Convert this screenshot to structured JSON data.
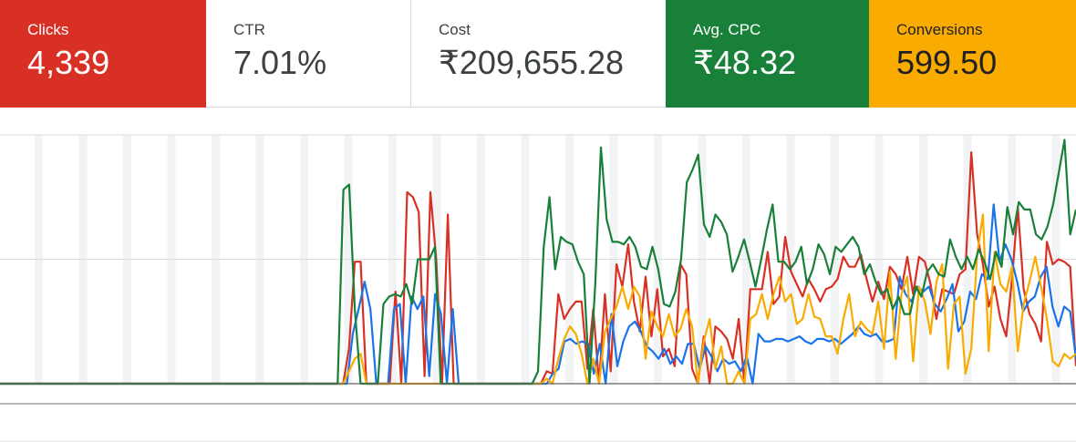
{
  "scorecards": [
    {
      "label": "Clicks",
      "value": "4,339",
      "color": "#d93025"
    },
    {
      "label": "CTR",
      "value": "7.01%",
      "color": "#ffffff"
    },
    {
      "label": "Cost",
      "value": "₹209,655.28",
      "color": "#ffffff"
    },
    {
      "label": "Avg. CPC",
      "value": "₹48.32",
      "color": "#188038"
    },
    {
      "label": "Conversions",
      "value": "599.50",
      "color": "#f9ab00"
    }
  ],
  "chart_data": {
    "type": "line",
    "grid": true,
    "ylim": [
      0,
      1
    ],
    "series": [
      {
        "color": "#d93025",
        "values": [
          0,
          0,
          0,
          0,
          0,
          0,
          0,
          0,
          0,
          0,
          0,
          0,
          0,
          0,
          0,
          0,
          0,
          0,
          0,
          0,
          0,
          0,
          0,
          0,
          0,
          0,
          0,
          0,
          0,
          0,
          0,
          0,
          0,
          0,
          0,
          0,
          0,
          0,
          0,
          0,
          0,
          0,
          0,
          0,
          0,
          0,
          0,
          0,
          0,
          0,
          0,
          0,
          0,
          0,
          0,
          0,
          0,
          0,
          0,
          0,
          0.14,
          0.49,
          0.49,
          0,
          0,
          0,
          0,
          0,
          0.37,
          0,
          0.77,
          0.75,
          0.69,
          0.03,
          0.77,
          0.5,
          0,
          0.68,
          0,
          0,
          0,
          0,
          0,
          0,
          0,
          0,
          0,
          0,
          0,
          0,
          0,
          0,
          0,
          0,
          0.05,
          0.04,
          0.36,
          0.26,
          0.3,
          0.33,
          0.33,
          0.06,
          0.3,
          0,
          0.36,
          0.05,
          0.48,
          0.39,
          0.56,
          0.33,
          0.21,
          0.43,
          0.19,
          0.38,
          0.11,
          0.14,
          0.07,
          0.48,
          0.44,
          0.06,
          0,
          0.19,
          0,
          0.23,
          0.21,
          0.18,
          0.1,
          0.26,
          0,
          0.38,
          0.38,
          0.38,
          0.53,
          0.32,
          0.35,
          0.59,
          0.45,
          0.4,
          0.35,
          0.42,
          0.38,
          0.33,
          0.38,
          0.39,
          0.42,
          0.51,
          0.47,
          0.47,
          0.52,
          0.42,
          0.33,
          0.41,
          0.34,
          0.47,
          0.44,
          0.38,
          0.51,
          0.36,
          0.51,
          0.49,
          0.4,
          0.26,
          0.38,
          0.37,
          0.36,
          0.44,
          0.46,
          0.93,
          0.6,
          0.48,
          0.31,
          0.39,
          0.26,
          0.19,
          0.42,
          0.71,
          0.38,
          0.28,
          0.24,
          0.17,
          0.57,
          0.48,
          0.5,
          0.49,
          0.47,
          0.07
        ]
      },
      {
        "color": "#1a73e8",
        "values": [
          0,
          0,
          0,
          0,
          0,
          0,
          0,
          0,
          0,
          0,
          0,
          0,
          0,
          0,
          0,
          0,
          0,
          0,
          0,
          0,
          0,
          0,
          0,
          0,
          0,
          0,
          0,
          0,
          0,
          0,
          0,
          0,
          0,
          0,
          0,
          0,
          0,
          0,
          0,
          0,
          0,
          0,
          0,
          0,
          0,
          0,
          0,
          0,
          0,
          0,
          0,
          0,
          0,
          0,
          0,
          0,
          0,
          0,
          0,
          0,
          0.2,
          0.3,
          0.41,
          0.3,
          0,
          0,
          0,
          0.3,
          0.32,
          0,
          0.35,
          0.3,
          0.35,
          0.03,
          0.36,
          0.28,
          0,
          0.3,
          0,
          0,
          0,
          0,
          0,
          0,
          0,
          0,
          0,
          0,
          0,
          0,
          0,
          0,
          0,
          0,
          0.04,
          0.06,
          0.17,
          0.18,
          0.16,
          0.17,
          0.16,
          0.04,
          0.16,
          0,
          0.28,
          0.07,
          0.17,
          0.23,
          0.25,
          0.21,
          0.15,
          0.13,
          0.1,
          0.14,
          0.08,
          0.11,
          0.08,
          0.16,
          0.16,
          0.06,
          0.15,
          0.11,
          0.05,
          0.1,
          0.08,
          0.09,
          0.05,
          0.11,
          0,
          0.2,
          0.17,
          0.17,
          0.18,
          0.18,
          0.17,
          0.18,
          0.19,
          0.17,
          0.16,
          0.18,
          0.18,
          0.17,
          0.18,
          0.16,
          0.18,
          0.2,
          0.23,
          0.2,
          0.19,
          0.2,
          0.17,
          0.17,
          0.18,
          0.43,
          0.36,
          0.33,
          0.39,
          0.37,
          0.39,
          0.32,
          0.29,
          0.34,
          0.4,
          0.21,
          0.25,
          0.37,
          0.34,
          0.44,
          0.42,
          0.72,
          0.49,
          0.56,
          0.5,
          0.41,
          0.29,
          0.33,
          0.35,
          0.43,
          0.47,
          0.31,
          0.23,
          0.31,
          0.29,
          0.1
        ]
      },
      {
        "color": "#f9ab00",
        "values": [
          0,
          0,
          0,
          0,
          0,
          0,
          0,
          0,
          0,
          0,
          0,
          0,
          0,
          0,
          0,
          0,
          0,
          0,
          0,
          0,
          0,
          0,
          0,
          0,
          0,
          0,
          0,
          0,
          0,
          0,
          0,
          0,
          0,
          0,
          0,
          0,
          0,
          0,
          0,
          0,
          0,
          0,
          0,
          0,
          0,
          0,
          0,
          0,
          0,
          0,
          0,
          0,
          0,
          0,
          0,
          0,
          0,
          0,
          0,
          0,
          0.05,
          0.1,
          0.12,
          0,
          0,
          0,
          0,
          0,
          0,
          0,
          0,
          0,
          0,
          0,
          0,
          0,
          0,
          0,
          0,
          0,
          0,
          0,
          0,
          0,
          0,
          0,
          0,
          0,
          0,
          0,
          0,
          0,
          0,
          0,
          0.02,
          0,
          0.1,
          0.18,
          0.23,
          0.2,
          0.12,
          0,
          0.1,
          0,
          0.21,
          0.26,
          0.31,
          0.39,
          0.3,
          0.39,
          0.35,
          0.1,
          0.29,
          0.23,
          0.19,
          0.28,
          0.19,
          0.22,
          0.3,
          0.23,
          0,
          0.17,
          0.26,
          0.06,
          0.15,
          0,
          0,
          0.05,
          0,
          0.26,
          0.28,
          0.36,
          0.26,
          0.36,
          0.43,
          0.33,
          0.36,
          0.24,
          0.26,
          0.36,
          0.27,
          0.26,
          0.19,
          0.19,
          0.12,
          0.26,
          0.36,
          0.19,
          0.25,
          0.22,
          0.2,
          0.33,
          0.14,
          0.45,
          0.1,
          0.36,
          0.43,
          0.09,
          0.39,
          0.33,
          0.2,
          0.41,
          0.48,
          0.06,
          0.32,
          0.35,
          0.04,
          0.14,
          0.52,
          0.68,
          0.13,
          0.53,
          0.4,
          0.37,
          0.47,
          0.13,
          0.32,
          0.41,
          0.51,
          0.39,
          0.26,
          0.09,
          0.07,
          0.12,
          0.1,
          0.12
        ]
      },
      {
        "color": "#188038",
        "values": [
          0,
          0,
          0,
          0,
          0,
          0,
          0,
          0,
          0,
          0,
          0,
          0,
          0,
          0,
          0,
          0,
          0,
          0,
          0,
          0,
          0,
          0,
          0,
          0,
          0,
          0,
          0,
          0,
          0,
          0,
          0,
          0,
          0,
          0,
          0,
          0,
          0,
          0,
          0,
          0,
          0,
          0,
          0,
          0,
          0,
          0,
          0,
          0,
          0,
          0,
          0,
          0,
          0,
          0,
          0,
          0,
          0,
          0,
          0,
          0,
          0.78,
          0.8,
          0.3,
          0,
          0,
          0,
          0,
          0.32,
          0.35,
          0.36,
          0.35,
          0.4,
          0.32,
          0.5,
          0.5,
          0.5,
          0.55,
          0,
          0,
          0,
          0,
          0,
          0,
          0,
          0,
          0,
          0,
          0,
          0,
          0,
          0,
          0,
          0,
          0,
          0.05,
          0.55,
          0.75,
          0.46,
          0.59,
          0.57,
          0.56,
          0.49,
          0.44,
          0,
          0.4,
          0.95,
          0.66,
          0.57,
          0.57,
          0.56,
          0.59,
          0.55,
          0.47,
          0.46,
          0.55,
          0.46,
          0.32,
          0.31,
          0.37,
          0.5,
          0.81,
          0.86,
          0.92,
          0.64,
          0.59,
          0.68,
          0.65,
          0.6,
          0.45,
          0.51,
          0.58,
          0.49,
          0.39,
          0.5,
          0.62,
          0.72,
          0.49,
          0.49,
          0.46,
          0.49,
          0.55,
          0.4,
          0.46,
          0.56,
          0.52,
          0.44,
          0.55,
          0.53,
          0.56,
          0.59,
          0.55,
          0.44,
          0.48,
          0.41,
          0.36,
          0.38,
          0.3,
          0.35,
          0.28,
          0.28,
          0.39,
          0.35,
          0.45,
          0.48,
          0.44,
          0.43,
          0.58,
          0.51,
          0.46,
          0.51,
          0.46,
          0.54,
          0.49,
          0.42,
          0.53,
          0.47,
          0.71,
          0.6,
          0.73,
          0.7,
          0.7,
          0.6,
          0.58,
          0.63,
          0.72,
          0.85,
          0.98,
          0.6,
          0.7
        ]
      }
    ]
  }
}
